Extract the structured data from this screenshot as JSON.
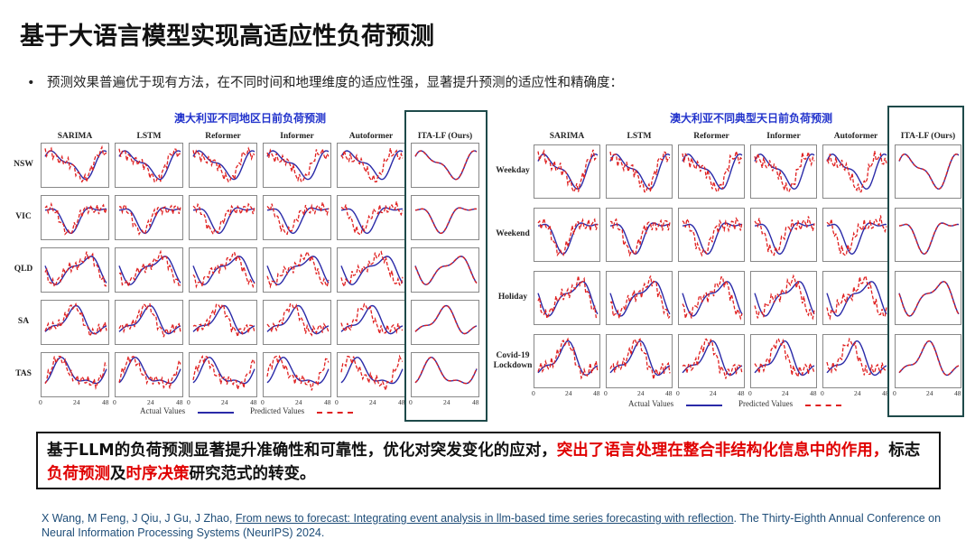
{
  "slide": {
    "title": "基于大语言模型实现高适应性负荷预测",
    "bullet": "预测效果普遍优于现有方法，在不同时间和地理维度的适应性强，显著提升预测的适应性和精确度：",
    "colors": {
      "actual": "#2a2aa8",
      "predicted": "#e02020",
      "highlight_box": "#1e4a4a",
      "panel_title": "#2233cc",
      "accent_red": "#e00000"
    }
  },
  "left_panel": {
    "title": "澳大利亚不同地区日前负荷预测",
    "columns": [
      "SARIMA",
      "LSTM",
      "Reformer",
      "Informer",
      "Autoformer",
      "ITA-LF (Ours)"
    ],
    "rows": [
      "NSW",
      "VIC",
      "QLD",
      "SA",
      "TAS"
    ],
    "x_ticks": [
      "0",
      "24",
      "48"
    ],
    "legend": {
      "actual": "Actual Values",
      "predicted": "Predicted Values"
    }
  },
  "right_panel": {
    "title": "澳大利亚不同典型天日前负荷预测",
    "columns": [
      "SARIMA",
      "LSTM",
      "Reformer",
      "Informer",
      "Autoformer",
      "ITA-LF (Ours)"
    ],
    "rows": [
      "Weekday",
      "Weekend",
      "Holiday",
      "Covid-19 Lockdown"
    ],
    "x_ticks": [
      "0",
      "24",
      "48"
    ],
    "legend": {
      "actual": "Actual Values",
      "predicted": "Predicted Values"
    }
  },
  "summary": {
    "part1": "基于LLM的负荷预测显著提升准确性和可靠性，优化对突发变化的应对，",
    "part2_red": "突出了语言处理在整合非结构化信息中的作用，",
    "part3": "标志",
    "part4_red": "负荷预测",
    "part5": "及",
    "part6_red": "时序决策",
    "part7": "研究范式的转变。"
  },
  "reference": {
    "authors": "X Wang, M Feng, J Qiu, J Gu, J Zhao, ",
    "paper_title": "From news to forecast: Integrating event analysis in llm-based time series forecasting with reflection",
    "venue": ". The Thirty-Eighth Annual Conference on Neural Information Processing Systems (NeurIPS) 2024."
  }
}
